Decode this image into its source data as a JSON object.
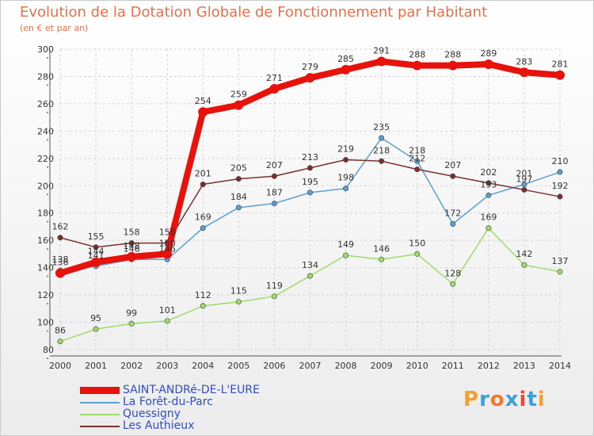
{
  "title": "Evolution de la Dotation Globale de Fonctionnement par Habitant",
  "subtitle": "(en € et par an)",
  "brand": {
    "text": "Proxiti",
    "letter_colors": [
      "#f0a030",
      "#3aa0e0",
      "#f07a2a",
      "#3aa0e0",
      "#e84a3a",
      "#3aa0e0",
      "#f0a030"
    ]
  },
  "chart_data": {
    "type": "line",
    "title": "Evolution de la Dotation Globale de Fonctionnement par Habitant",
    "subtitle": "(en € et par an)",
    "xlabel": "",
    "ylabel": "",
    "x": [
      "2000",
      "2001",
      "2002",
      "2003",
      "2004",
      "2005",
      "2006",
      "2007",
      "2008",
      "2009",
      "2010",
      "2011",
      "2012",
      "2013",
      "2014"
    ],
    "ylim": [
      80,
      300
    ],
    "yticks": [
      80,
      100,
      120,
      140,
      160,
      180,
      200,
      220,
      240,
      260,
      280,
      300
    ],
    "grid": true,
    "legend_position": "bottom-left",
    "series": [
      {
        "name": "SAINT-ANDRé-DE-L'EURE",
        "color": "#e8120c",
        "width": 8,
        "values": [
          136,
          144,
          148,
          150,
          254,
          259,
          271,
          279,
          285,
          291,
          288,
          288,
          289,
          283,
          281
        ],
        "labels": [
          "136",
          "144",
          "148",
          "150",
          "254",
          "259",
          "271",
          "279",
          "285",
          "291",
          "288",
          "288",
          "289",
          "283",
          "281"
        ]
      },
      {
        "name": "La Forêt-du-Parc",
        "color": "#5a9fd0",
        "width": 1.5,
        "values": [
          138,
          141,
          146,
          146,
          169,
          184,
          187,
          195,
          198,
          235,
          218,
          172,
          193,
          201,
          210
        ],
        "labels": [
          "138",
          "141",
          "146",
          "146",
          "169",
          "184",
          "187",
          "195",
          "198",
          "235",
          "218",
          "172",
          "193",
          "201",
          "210"
        ]
      },
      {
        "name": "Quessigny",
        "color": "#9edb6a",
        "width": 1.5,
        "values": [
          86,
          95,
          99,
          101,
          112,
          115,
          119,
          134,
          149,
          146,
          150,
          128,
          169,
          142,
          137
        ],
        "labels": [
          "86",
          "95",
          "99",
          "101",
          "112",
          "115",
          "119",
          "134",
          "149",
          "146",
          "150",
          "128",
          "169",
          "142",
          "137"
        ]
      },
      {
        "name": "Les Authieux",
        "color": "#7a2f2f",
        "width": 1.5,
        "values": [
          162,
          155,
          158,
          158,
          201,
          205,
          207,
          213,
          219,
          218,
          212,
          207,
          202,
          197,
          192
        ],
        "labels": [
          "162",
          "155",
          "158",
          "158",
          "201",
          "205",
          "207",
          "213",
          "219",
          "218",
          "212",
          "207",
          "202",
          "197",
          "192"
        ]
      }
    ]
  }
}
